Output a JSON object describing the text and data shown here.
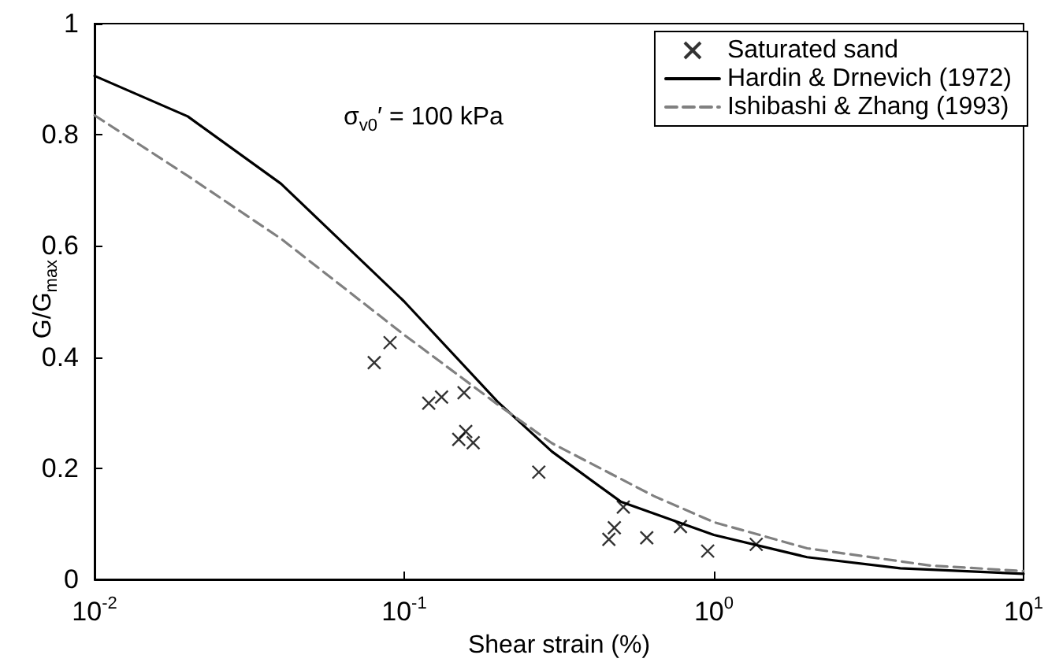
{
  "chart_data": {
    "type": "scatter",
    "xlabel": "Shear strain (%)",
    "ylabel": "G/G$_{max}$",
    "annotations": [
      "σ$_{v0}$′ = 100 kPa"
    ],
    "log": "x",
    "grid": false,
    "legend": "top right",
    "xlim": [
      0.01,
      10
    ],
    "xticks": [
      {
        "value": 0.01,
        "label": "10$^{-2}$"
      },
      {
        "value": 0.1,
        "label": "10$^{-1}$"
      },
      {
        "value": 1,
        "label": "10$^{0}$"
      },
      {
        "value": 10,
        "label": "10$^{1}$"
      }
    ],
    "ylim": [
      0,
      1
    ],
    "yticks": [
      0,
      0.2,
      0.4,
      0.6,
      0.8,
      1
    ],
    "series": [
      {
        "name": "Saturated sand",
        "marker": "cross",
        "color": "#000000",
        "x": [
          0.08,
          0.09,
          0.12,
          0.132,
          0.156,
          0.15,
          0.158,
          0.167,
          0.272,
          0.51,
          0.477,
          0.458,
          0.607,
          0.78,
          0.955,
          1.37
        ],
        "values": [
          0.39,
          0.426,
          0.317,
          0.328,
          0.336,
          0.252,
          0.266,
          0.246,
          0.193,
          0.13,
          0.093,
          0.072,
          0.075,
          0.095,
          0.051,
          0.063
        ]
      },
      {
        "name": "Hardin & Drnevich (1972)",
        "type": "line",
        "line_style": "solid",
        "marker": "none",
        "color": "#000000",
        "x": [
          0.01,
          0.02,
          0.04,
          0.1,
          0.2,
          0.3,
          0.5,
          1,
          2,
          4,
          10
        ],
        "values": [
          0.906,
          0.833,
          0.712,
          0.5,
          0.32,
          0.23,
          0.14,
          0.08,
          0.04,
          0.02,
          0.01
        ]
      },
      {
        "name": "Ishibashi & Zhang (1993)",
        "type": "line",
        "line_style": "dashed",
        "marker": "none",
        "color": "#808080",
        "x": [
          0.01,
          0.02,
          0.04,
          0.1,
          0.2,
          0.3,
          0.64,
          1,
          2,
          5,
          10
        ],
        "values": [
          0.835,
          0.726,
          0.613,
          0.44,
          0.315,
          0.245,
          0.15,
          0.103,
          0.056,
          0.025,
          0.015
        ]
      }
    ]
  }
}
